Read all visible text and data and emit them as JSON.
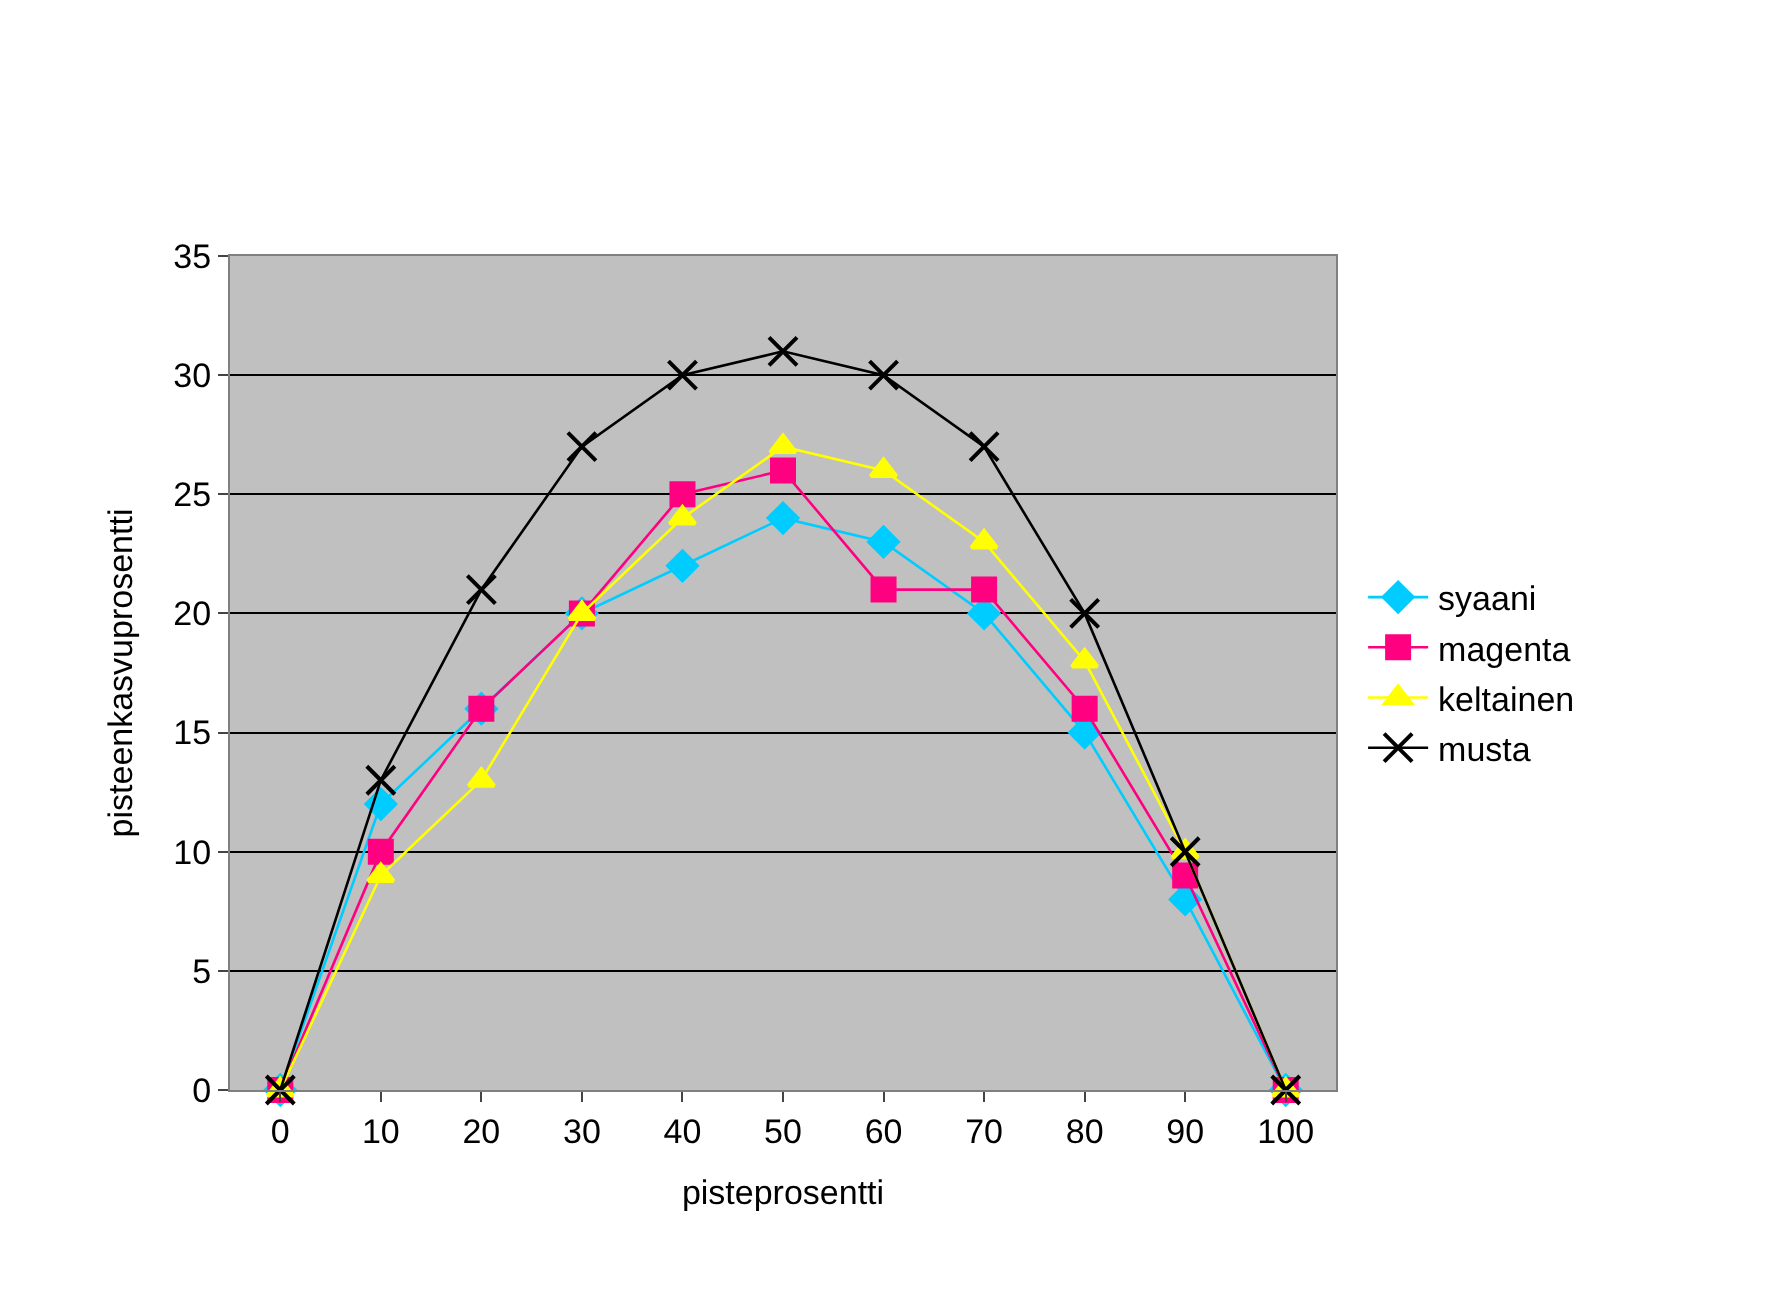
{
  "chart_data": {
    "type": "line",
    "xlabel": "pisteprosentti",
    "ylabel": "pisteenkasvuprosentti",
    "categories": [
      "0",
      "10",
      "20",
      "30",
      "40",
      "50",
      "60",
      "70",
      "80",
      "90",
      "100"
    ],
    "series": [
      {
        "name": "syaani",
        "color": "#00ccff",
        "marker": "diamond",
        "values": [
          0,
          12,
          16,
          20,
          22,
          24,
          23,
          20,
          15,
          8,
          0
        ]
      },
      {
        "name": "magenta",
        "color": "#ff0080",
        "marker": "square",
        "values": [
          0,
          10,
          16,
          20,
          25,
          26,
          21,
          21,
          16,
          9,
          0
        ]
      },
      {
        "name": "keltainen",
        "color": "#ffff00",
        "marker": "triangle",
        "values": [
          0,
          9,
          13,
          20,
          24,
          27,
          26,
          23,
          18,
          10,
          0
        ]
      },
      {
        "name": "musta",
        "color": "#000000",
        "marker": "cross",
        "values": [
          0,
          13,
          21,
          27,
          30,
          31,
          30,
          27,
          20,
          10,
          0
        ]
      }
    ],
    "ylim": [
      0,
      35
    ],
    "yticks": [
      0,
      5,
      10,
      15,
      20,
      25,
      30,
      35
    ],
    "grid": "y",
    "legend": "right",
    "line_style": "solid"
  }
}
